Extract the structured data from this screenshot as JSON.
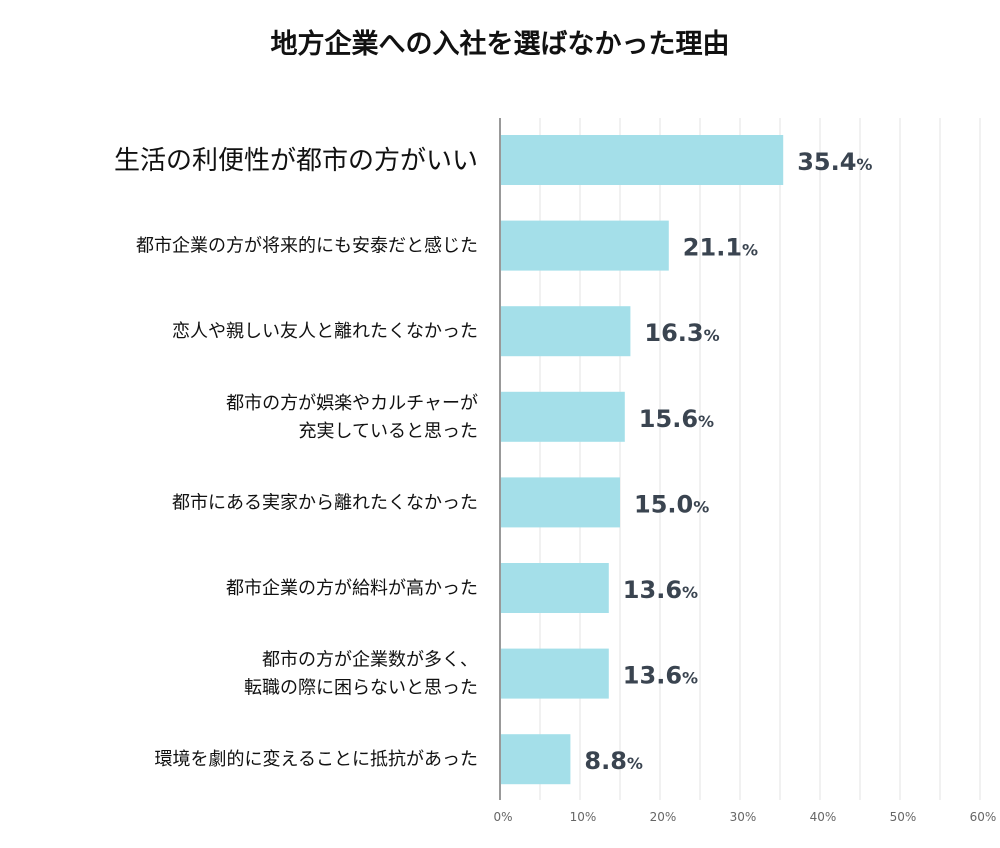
{
  "chart_data": {
    "type": "bar",
    "orientation": "horizontal",
    "title": "地方企業への入社を選ばなかった理由",
    "categories": [
      [
        "生活の利便性が都市の方がいい"
      ],
      [
        "都市企業の方が将来的にも安泰だと感じた"
      ],
      [
        "恋人や親しい友人と離れたくなかった"
      ],
      [
        "都市の方が娯楽やカルチャーが",
        "充実していると思った"
      ],
      [
        "都市にある実家から離れたくなかった"
      ],
      [
        "都市企業の方が給料が高かった"
      ],
      [
        "都市の方が企業数が多く、",
        "転職の際に困らないと思った"
      ],
      [
        "環境を劇的に変えることに抵抗があった"
      ]
    ],
    "values": [
      35.4,
      21.1,
      16.3,
      15.6,
      15.0,
      13.6,
      13.6,
      8.8
    ],
    "value_labels": [
      "35.4",
      "21.1",
      "16.3",
      "15.6",
      "15.0",
      "13.6",
      "13.6",
      "8.8"
    ],
    "value_unit": "%",
    "xlim": [
      0,
      60
    ],
    "xticks": [
      "0%",
      "10%",
      "20%",
      "30%",
      "40%",
      "50%",
      "60%"
    ],
    "grid": true,
    "bar_color": "#a4dfe9",
    "highlight_first_category": true
  }
}
